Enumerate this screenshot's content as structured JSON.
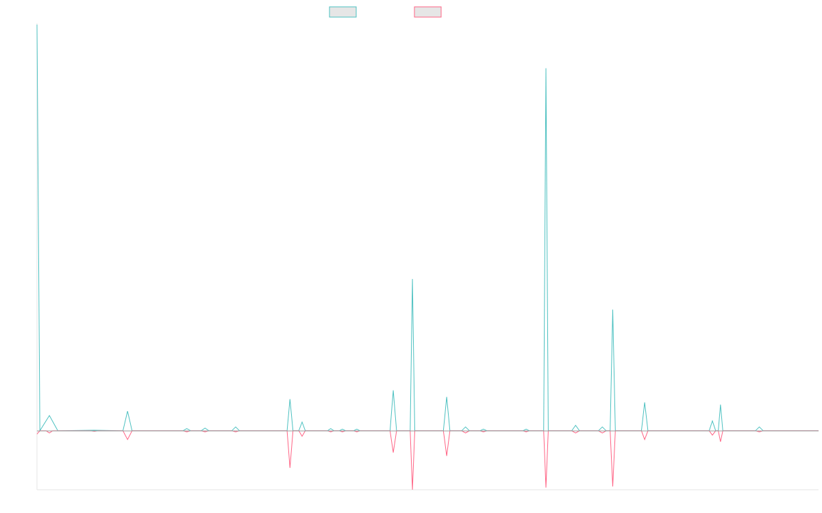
{
  "chart_data": {
    "type": "line",
    "title": "",
    "xlabel": "",
    "ylabel": "",
    "x_count": 60,
    "ylim": [
      -5.4,
      37.2
    ],
    "grid": false,
    "legend_position": "top-center",
    "series": [
      {
        "name": "",
        "color": "#4bc0c0",
        "values": [
          37.2,
          0,
          1.4,
          0,
          0,
          0,
          0,
          0,
          0,
          0,
          0,
          0,
          0,
          0,
          0,
          0,
          0,
          0,
          0,
          0,
          0,
          0,
          0,
          0,
          0,
          0,
          0,
          0,
          0,
          0,
          0,
          0,
          0,
          0,
          0,
          0,
          0,
          0,
          0,
          0,
          0,
          0,
          0,
          0,
          0,
          0,
          0,
          0,
          0,
          0,
          0,
          0,
          0,
          0,
          0,
          0,
          0,
          0,
          0,
          0
        ],
        "points": [
          [
            0,
            37.2
          ],
          [
            0.22,
            0
          ],
          [
            0.95,
            1.4
          ],
          [
            1.6,
            0
          ],
          [
            4.4,
            0.05
          ],
          [
            6.6,
            0
          ],
          [
            6.95,
            1.8
          ],
          [
            7.3,
            0
          ],
          [
            11.2,
            0
          ],
          [
            11.5,
            0.2
          ],
          [
            11.8,
            0
          ],
          [
            12.6,
            0
          ],
          [
            12.9,
            0.25
          ],
          [
            13.2,
            0
          ],
          [
            14.95,
            0
          ],
          [
            15.25,
            0.35
          ],
          [
            15.55,
            0
          ],
          [
            19.2,
            0
          ],
          [
            19.42,
            2.9
          ],
          [
            19.65,
            0
          ],
          [
            20.1,
            0
          ],
          [
            20.35,
            0.8
          ],
          [
            20.6,
            0
          ],
          [
            22.3,
            0
          ],
          [
            22.55,
            0.2
          ],
          [
            22.8,
            0
          ],
          [
            23.2,
            0
          ],
          [
            23.45,
            0.15
          ],
          [
            23.7,
            0
          ],
          [
            24.3,
            0
          ],
          [
            24.55,
            0.15
          ],
          [
            24.8,
            0
          ],
          [
            27.1,
            0
          ],
          [
            27.35,
            3.7
          ],
          [
            27.6,
            0
          ],
          [
            28.65,
            0
          ],
          [
            28.82,
            13.9
          ],
          [
            29.0,
            0
          ],
          [
            31.2,
            0
          ],
          [
            31.45,
            3.1
          ],
          [
            31.7,
            0
          ],
          [
            32.6,
            0
          ],
          [
            32.9,
            0.35
          ],
          [
            33.2,
            0
          ],
          [
            34.0,
            0
          ],
          [
            34.27,
            0.15
          ],
          [
            34.55,
            0
          ],
          [
            37.3,
            0
          ],
          [
            37.55,
            0.15
          ],
          [
            37.8,
            0
          ],
          [
            38.9,
            0
          ],
          [
            39.07,
            33.2
          ],
          [
            39.25,
            0
          ],
          [
            41.05,
            0
          ],
          [
            41.35,
            0.5
          ],
          [
            41.65,
            0
          ],
          [
            43.1,
            0
          ],
          [
            43.4,
            0.35
          ],
          [
            43.7,
            0
          ],
          [
            44.0,
            0
          ],
          [
            44.2,
            11.1
          ],
          [
            44.4,
            0
          ],
          [
            46.4,
            0
          ],
          [
            46.65,
            2.6
          ],
          [
            46.9,
            0
          ],
          [
            51.6,
            0
          ],
          [
            51.85,
            0.9
          ],
          [
            52.1,
            0
          ],
          [
            52.3,
            0
          ],
          [
            52.47,
            2.4
          ],
          [
            52.65,
            0
          ],
          [
            55.15,
            0
          ],
          [
            55.45,
            0.35
          ],
          [
            55.75,
            0
          ],
          [
            60,
            0
          ]
        ]
      },
      {
        "name": "",
        "color": "#ff6384",
        "values": [
          -0.3,
          0,
          0,
          0,
          0,
          0,
          0,
          0,
          0,
          0,
          0,
          0,
          0,
          0,
          0,
          0,
          0,
          0,
          0,
          0,
          0,
          0,
          0,
          0,
          0,
          0,
          0,
          0,
          0,
          0,
          0,
          0,
          0,
          0,
          0,
          0,
          0,
          0,
          0,
          0,
          0,
          0,
          0,
          0,
          0,
          0,
          0,
          0,
          0,
          0,
          0,
          0,
          0,
          0,
          0,
          0,
          0,
          0,
          0,
          0
        ],
        "points": [
          [
            0,
            -0.3
          ],
          [
            0.22,
            0
          ],
          [
            0.7,
            0
          ],
          [
            0.95,
            -0.2
          ],
          [
            1.2,
            0
          ],
          [
            4.1,
            0
          ],
          [
            4.4,
            -0.05
          ],
          [
            4.7,
            0
          ],
          [
            6.6,
            0
          ],
          [
            6.95,
            -0.8
          ],
          [
            7.3,
            0
          ],
          [
            11.2,
            0
          ],
          [
            11.5,
            -0.1
          ],
          [
            11.8,
            0
          ],
          [
            12.6,
            0
          ],
          [
            12.9,
            -0.1
          ],
          [
            13.2,
            0
          ],
          [
            14.95,
            0
          ],
          [
            15.25,
            -0.1
          ],
          [
            15.55,
            0
          ],
          [
            19.2,
            0
          ],
          [
            19.42,
            -3.4
          ],
          [
            19.65,
            0
          ],
          [
            20.1,
            0
          ],
          [
            20.35,
            -0.5
          ],
          [
            20.6,
            0
          ],
          [
            22.3,
            0
          ],
          [
            22.55,
            -0.1
          ],
          [
            22.8,
            0
          ],
          [
            23.2,
            0
          ],
          [
            23.45,
            -0.1
          ],
          [
            23.7,
            0
          ],
          [
            24.3,
            0
          ],
          [
            24.55,
            -0.1
          ],
          [
            24.8,
            0
          ],
          [
            27.1,
            0
          ],
          [
            27.35,
            -2.0
          ],
          [
            27.6,
            0
          ],
          [
            28.65,
            0
          ],
          [
            28.82,
            -5.4
          ],
          [
            29.0,
            0
          ],
          [
            31.2,
            0
          ],
          [
            31.45,
            -2.3
          ],
          [
            31.7,
            0
          ],
          [
            32.6,
            0
          ],
          [
            32.9,
            -0.2
          ],
          [
            33.2,
            0
          ],
          [
            34.0,
            0
          ],
          [
            34.27,
            -0.1
          ],
          [
            34.55,
            0
          ],
          [
            37.3,
            0
          ],
          [
            37.55,
            -0.1
          ],
          [
            37.8,
            0
          ],
          [
            38.9,
            0
          ],
          [
            39.07,
            -5.2
          ],
          [
            39.25,
            0
          ],
          [
            41.05,
            0
          ],
          [
            41.35,
            -0.2
          ],
          [
            41.65,
            0
          ],
          [
            43.1,
            0
          ],
          [
            43.4,
            -0.2
          ],
          [
            43.7,
            0
          ],
          [
            44.0,
            0
          ],
          [
            44.2,
            -5.1
          ],
          [
            44.4,
            0
          ],
          [
            46.4,
            0
          ],
          [
            46.65,
            -0.8
          ],
          [
            46.9,
            0
          ],
          [
            51.6,
            0
          ],
          [
            51.85,
            -0.4
          ],
          [
            52.1,
            0
          ],
          [
            52.3,
            0
          ],
          [
            52.47,
            -1.0
          ],
          [
            52.65,
            0
          ],
          [
            55.15,
            0
          ],
          [
            55.45,
            -0.1
          ],
          [
            55.75,
            0
          ],
          [
            60,
            0
          ]
        ]
      }
    ]
  }
}
